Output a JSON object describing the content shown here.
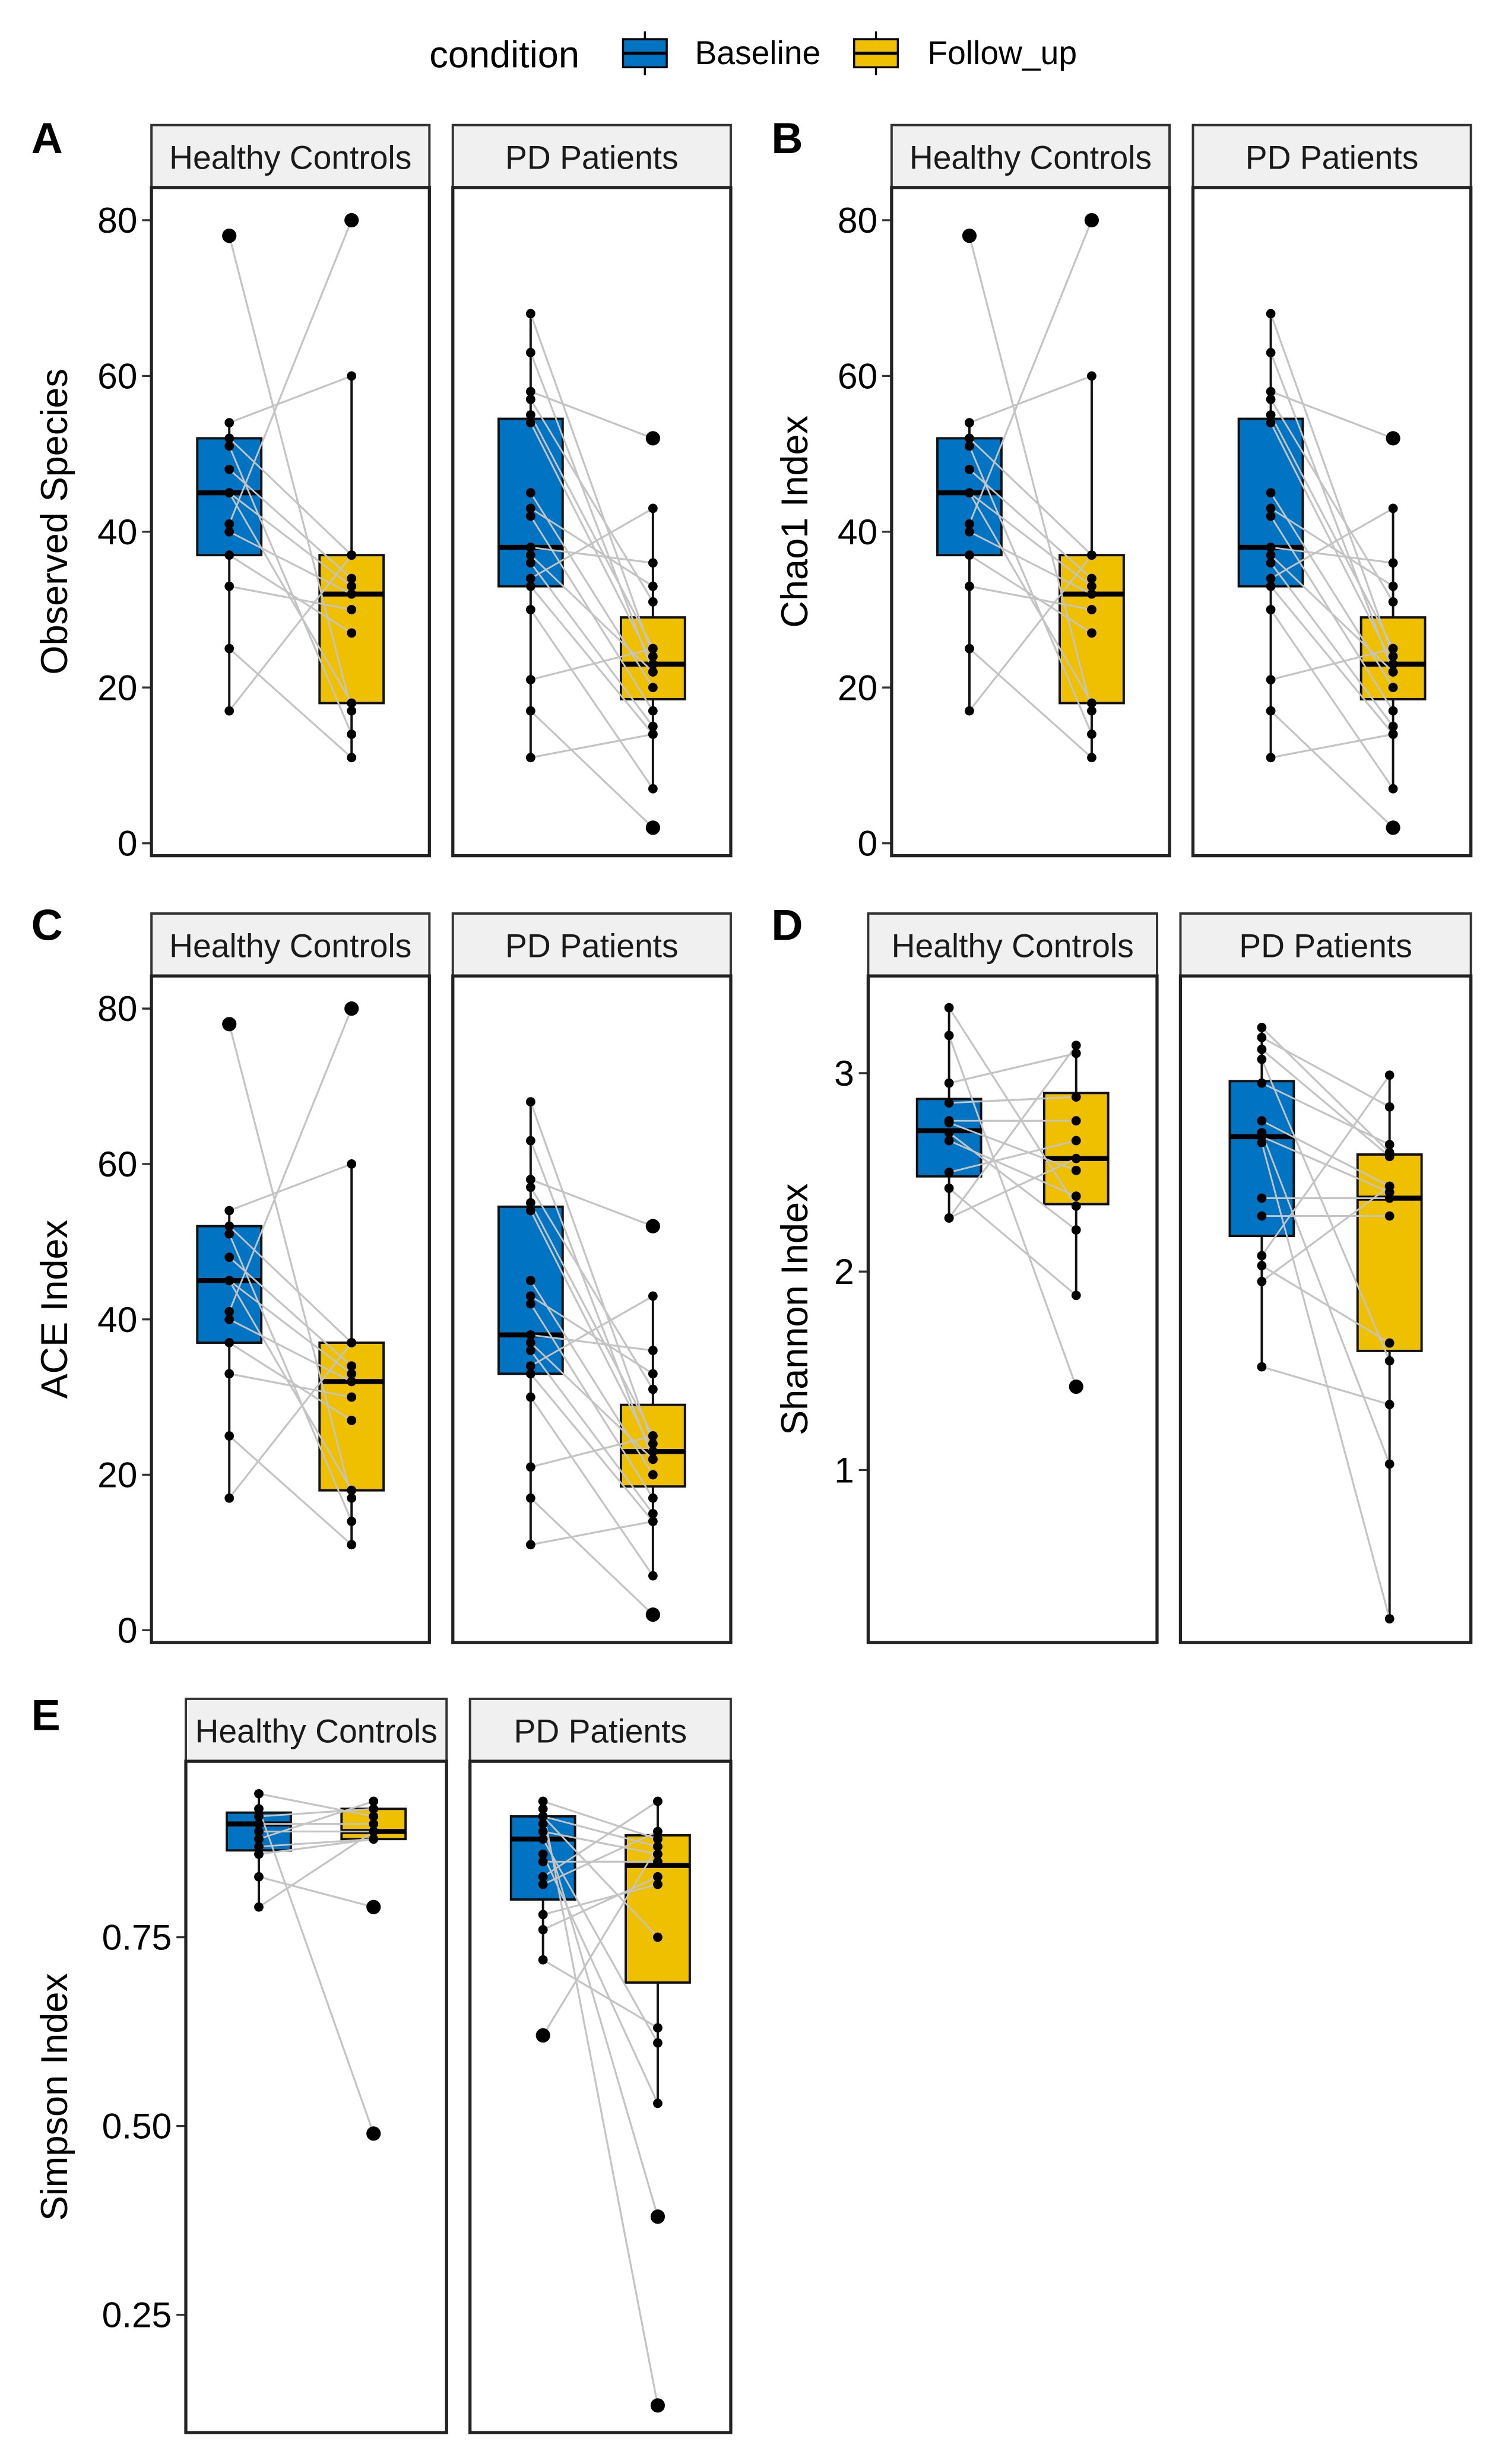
{
  "legend": {
    "title": "condition",
    "items": [
      {
        "label": "Baseline",
        "color": "#0073C2"
      },
      {
        "label": "Follow_up",
        "color": "#EFC000"
      }
    ]
  },
  "chart_data": [
    {
      "panel": "A",
      "type": "box",
      "ylabel": "Observed Species",
      "yticks": [
        "0",
        "20",
        "40",
        "60",
        "80"
      ],
      "ytick_values": [
        0,
        20,
        40,
        60,
        80
      ],
      "ylim": [
        -1.6,
        84.2
      ],
      "facets": [
        {
          "label": "Healthy Controls",
          "baseline": {
            "q1": 37,
            "median": 45,
            "q3": 52,
            "whisker_low": 17,
            "whisker_high": 54,
            "points": [
              78,
              54,
              52,
              51,
              48,
              45,
              45,
              41,
              40,
              37,
              33,
              25,
              17
            ]
          },
          "follow_up": {
            "q1": 18,
            "median": 32,
            "q3": 37,
            "whisker_low": 11,
            "whisker_high": 60,
            "points": [
              17,
              60,
              37,
              14,
              34,
              33,
              18,
              80,
              32,
              27,
              30,
              11,
              37
            ]
          }
        },
        {
          "label": "PD Patients",
          "baseline": {
            "q1": 33,
            "median": 38,
            "q3": 54.5,
            "whisker_low": 11,
            "whisker_high": 68,
            "points": [
              68,
              63,
              58,
              57,
              55,
              54,
              45,
              43,
              42,
              38,
              37,
              36,
              34,
              33,
              30,
              21,
              17,
              11
            ]
          },
          "follow_up": {
            "q1": 18.5,
            "median": 23,
            "q3": 29,
            "whisker_low": 7,
            "whisker_high": 43,
            "points": [
              24,
              22,
              52,
              31,
              25,
              23,
              20,
              33,
              17,
              36,
              22,
              15,
              43,
              14,
              7,
              25,
              2,
              14
            ]
          }
        }
      ]
    },
    {
      "panel": "B",
      "type": "box",
      "ylabel": "Chao1 Index",
      "yticks": [
        "0",
        "20",
        "40",
        "60",
        "80"
      ],
      "ytick_values": [
        0,
        20,
        40,
        60,
        80
      ],
      "ylim": [
        -1.6,
        84.2
      ],
      "facets": [
        {
          "label": "Healthy Controls",
          "baseline": {
            "q1": 37,
            "median": 45,
            "q3": 52,
            "whisker_low": 17,
            "whisker_high": 54,
            "points": [
              78,
              54,
              52,
              51,
              48,
              45,
              45,
              41,
              40,
              37,
              33,
              25,
              17
            ]
          },
          "follow_up": {
            "q1": 18,
            "median": 32,
            "q3": 37,
            "whisker_low": 11,
            "whisker_high": 60,
            "points": [
              17,
              60,
              37,
              14,
              34,
              33,
              18,
              80,
              32,
              27,
              30,
              11,
              37
            ]
          }
        },
        {
          "label": "PD Patients",
          "baseline": {
            "q1": 33,
            "median": 38,
            "q3": 54.5,
            "whisker_low": 11,
            "whisker_high": 68,
            "points": [
              68,
              63,
              58,
              57,
              55,
              54,
              45,
              43,
              42,
              38,
              37,
              36,
              34,
              33,
              30,
              21,
              17,
              11
            ]
          },
          "follow_up": {
            "q1": 18.5,
            "median": 23,
            "q3": 29,
            "whisker_low": 7,
            "whisker_high": 43,
            "points": [
              24,
              22,
              52,
              31,
              25,
              23,
              20,
              33,
              17,
              36,
              22,
              15,
              43,
              14,
              7,
              25,
              2,
              14
            ]
          }
        }
      ]
    },
    {
      "panel": "C",
      "type": "box",
      "ylabel": "ACE Index",
      "yticks": [
        "0",
        "20",
        "40",
        "60",
        "80"
      ],
      "ytick_values": [
        0,
        20,
        40,
        60,
        80
      ],
      "ylim": [
        -1.6,
        84.2
      ],
      "facets": [
        {
          "label": "Healthy Controls",
          "baseline": {
            "q1": 37,
            "median": 45,
            "q3": 52,
            "whisker_low": 17,
            "whisker_high": 54,
            "points": [
              78,
              54,
              52,
              51,
              48,
              45,
              45,
              41,
              40,
              37,
              33,
              25,
              17
            ]
          },
          "follow_up": {
            "q1": 18,
            "median": 32,
            "q3": 37,
            "whisker_low": 11,
            "whisker_high": 60,
            "points": [
              17,
              60,
              37,
              14,
              34,
              33,
              18,
              80,
              32,
              27,
              30,
              11,
              37
            ]
          }
        },
        {
          "label": "PD Patients",
          "baseline": {
            "q1": 33,
            "median": 38,
            "q3": 54.5,
            "whisker_low": 11,
            "whisker_high": 68,
            "points": [
              68,
              63,
              58,
              57,
              55,
              54,
              45,
              43,
              42,
              38,
              37,
              36,
              34,
              33,
              30,
              21,
              17,
              11
            ]
          },
          "follow_up": {
            "q1": 18.5,
            "median": 23,
            "q3": 29,
            "whisker_low": 7,
            "whisker_high": 43,
            "points": [
              24,
              22,
              52,
              31,
              25,
              23,
              20,
              33,
              17,
              36,
              22,
              15,
              43,
              14,
              7,
              25,
              2,
              14
            ]
          }
        }
      ]
    },
    {
      "panel": "D",
      "type": "box",
      "ylabel": "Shannon Index",
      "yticks": [
        "1",
        "2",
        "3"
      ],
      "ytick_values": [
        1,
        2,
        3
      ],
      "ylim": [
        0.13,
        3.49
      ],
      "facets": [
        {
          "label": "Healthy Controls",
          "baseline": {
            "q1": 2.48,
            "median": 2.71,
            "q3": 2.87,
            "whisker_low": 2.27,
            "whisker_high": 3.33,
            "points": [
              3.33,
              3.19,
              2.95,
              2.85,
              2.76,
              2.75,
              2.7,
              2.66,
              2.5,
              2.42,
              2.27,
              2.27
            ]
          },
          "follow_up": {
            "q1": 2.34,
            "median": 2.57,
            "q3": 2.9,
            "whisker_low": 1.88,
            "whisker_high": 3.14,
            "points": [
              2.33,
              1.42,
              3.1,
              2.88,
              2.76,
              2.51,
              2.21,
              2.38,
              2.66,
              1.88,
              3.14,
              2.57
            ]
          }
        },
        {
          "label": "PD Patients",
          "baseline": {
            "q1": 2.18,
            "median": 2.68,
            "q3": 2.96,
            "whisker_low": 1.52,
            "whisker_high": 3.23,
            "points": [
              3.23,
              3.18,
              3.12,
              3.07,
              2.95,
              2.76,
              2.7,
              2.68,
              2.65,
              2.37,
              2.28,
              2.08,
              2.03,
              1.95,
              1.52
            ]
          },
          "follow_up": {
            "q1": 1.6,
            "median": 2.37,
            "q3": 2.59,
            "whisker_low": 0.25,
            "whisker_high": 2.99,
            "points": [
              2.6,
              2.83,
              2.58,
              1.55,
              2.64,
              2.43,
              1.03,
              2.4,
              0.25,
              2.37,
              2.28,
              2.99,
              1.64,
              2.43,
              1.33
            ]
          }
        }
      ]
    },
    {
      "panel": "E",
      "type": "box",
      "ylabel": "Simpson Index",
      "yticks": [
        "0.25",
        "0.50",
        "0.75"
      ],
      "ytick_values": [
        0.25,
        0.5,
        0.75
      ],
      "ylim": [
        0.094,
        0.983
      ],
      "facets": [
        {
          "label": "Healthy Controls",
          "baseline": {
            "q1": 0.865,
            "median": 0.9,
            "q3": 0.915,
            "whisker_low": 0.79,
            "whisker_high": 0.94,
            "points": [
              0.94,
              0.92,
              0.91,
              0.9,
              0.89,
              0.88,
              0.87,
              0.86,
              0.83,
              0.79
            ]
          },
          "follow_up": {
            "q1": 0.88,
            "median": 0.89,
            "q3": 0.92,
            "whisker_low": 0.88,
            "whisker_high": 0.93,
            "points": [
              0.91,
              0.49,
              0.92,
              0.9,
              0.89,
              0.93,
              0.88,
              0.88,
              0.79,
              0.89
            ]
          }
        },
        {
          "label": "PD Patients",
          "baseline": {
            "q1": 0.8,
            "median": 0.88,
            "q3": 0.91,
            "whisker_low": 0.72,
            "whisker_high": 0.93,
            "points": [
              0.93,
              0.92,
              0.91,
              0.9,
              0.89,
              0.88,
              0.86,
              0.85,
              0.83,
              0.82,
              0.78,
              0.76,
              0.72,
              0.62,
              0.91
            ]
          },
          "follow_up": {
            "q1": 0.69,
            "median": 0.845,
            "q3": 0.885,
            "whisker_low": 0.53,
            "whisker_high": 0.93,
            "points": [
              0.88,
              0.13,
              0.87,
              0.38,
              0.86,
              0.61,
              0.53,
              0.85,
              0.93,
              0.89,
              0.82,
              0.83,
              0.63,
              0.87,
              0.75
            ]
          }
        }
      ]
    }
  ]
}
